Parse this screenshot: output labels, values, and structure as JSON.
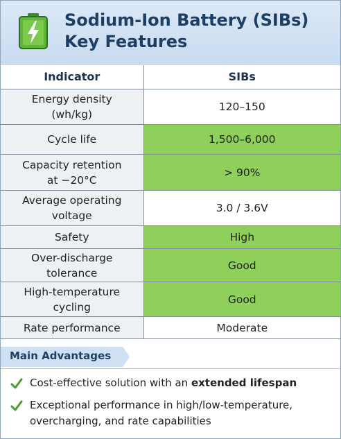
{
  "header": {
    "title_line1": "Sodium-Ion Battery (SIBs)",
    "title_line2": "Key Features",
    "icon": "battery-charging-icon",
    "colors": {
      "header_bg": "#c8dbf0",
      "title": "#1d3f66",
      "highlight": "#8ed05a"
    }
  },
  "table": {
    "columns": [
      "Indicator",
      "SIBs"
    ],
    "rows": [
      {
        "indicator_line1": "Energy density",
        "indicator_line2": "(wh/kg)",
        "value": "120–150",
        "highlighted": false
      },
      {
        "indicator_line1": "Cycle life",
        "indicator_line2": "",
        "value": "1,500–6,000",
        "highlighted": true
      },
      {
        "indicator_line1": "Capacity retention",
        "indicator_line2": "at −20°C",
        "value": "> 90%",
        "highlighted": true
      },
      {
        "indicator_line1": "Average operating",
        "indicator_line2": "voltage",
        "value": "3.0 / 3.6V",
        "highlighted": false
      },
      {
        "indicator_line1": "Safety",
        "indicator_line2": "",
        "value": "High",
        "highlighted": true
      },
      {
        "indicator_line1": "Over-discharge",
        "indicator_line2": "tolerance",
        "value": "Good",
        "highlighted": true
      },
      {
        "indicator_line1": "High-temperature",
        "indicator_line2": "cycling",
        "value": "Good",
        "highlighted": true
      },
      {
        "indicator_line1": "Rate performance",
        "indicator_line2": "",
        "value": "Moderate",
        "highlighted": false
      }
    ]
  },
  "advantages": {
    "heading": "Main Advantages",
    "items": [
      {
        "prefix": "Cost-effective solution with an ",
        "bold": "extended lifespan",
        "icon": "check-icon"
      },
      {
        "line1": "Exceptional performance in high/low-temperature,",
        "line2": "overcharging, and rate capabilities",
        "icon": "check-icon"
      }
    ]
  }
}
